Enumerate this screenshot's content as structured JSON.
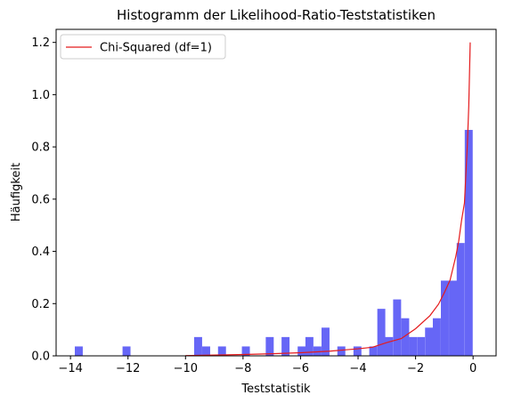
{
  "chart_data": {
    "type": "bar",
    "title": "Histogramm der Likelihood-Ratio-Teststatistiken",
    "xlabel": "Teststatistik",
    "ylabel": "Häufigkeit",
    "xlim": [
      -14.5,
      0.8
    ],
    "ylim": [
      0,
      1.25
    ],
    "xticks": [
      -14,
      -12,
      -10,
      -8,
      -6,
      -4,
      -2,
      0
    ],
    "yticks": [
      0.0,
      0.2,
      0.4,
      0.6,
      0.8,
      1.0,
      1.2
    ],
    "bin_width": 0.277,
    "bar_color": "#6666f6",
    "line_color": "#e41a1c",
    "histogram": {
      "bin_left": [
        -13.85,
        -12.19,
        -9.7,
        -9.42,
        -8.87,
        -8.04,
        -7.21,
        -6.66,
        -6.1,
        -5.83,
        -5.55,
        -5.27,
        -4.72,
        -4.16,
        -3.61,
        -3.33,
        -3.06,
        -2.78,
        -2.5,
        -2.23,
        -1.95,
        -1.67,
        -1.4,
        -1.12,
        -0.84,
        -0.57,
        -0.29
      ],
      "values": [
        0.036,
        0.036,
        0.072,
        0.036,
        0.036,
        0.036,
        0.072,
        0.072,
        0.036,
        0.072,
        0.036,
        0.108,
        0.036,
        0.036,
        0.036,
        0.18,
        0.072,
        0.216,
        0.144,
        0.072,
        0.072,
        0.108,
        0.144,
        0.288,
        0.288,
        0.432,
        0.865
      ]
    },
    "series": [
      {
        "name": "Chi-Squared (df=1)",
        "type": "line",
        "x": [
          -10.0,
          -9.0,
          -8.0,
          -7.0,
          -6.0,
          -5.0,
          -4.0,
          -3.5,
          -3.0,
          -2.5,
          -2.0,
          -1.5,
          -1.2,
          -1.0,
          -0.8,
          -0.6,
          -0.5,
          -0.4,
          -0.3,
          -0.25,
          -0.2,
          -0.15,
          -0.1
        ],
        "y": [
          0.001,
          0.003,
          0.005,
          0.008,
          0.012,
          0.018,
          0.027,
          0.033,
          0.051,
          0.066,
          0.104,
          0.154,
          0.198,
          0.242,
          0.29,
          0.381,
          0.439,
          0.519,
          0.585,
          0.696,
          0.805,
          0.957,
          1.2
        ]
      }
    ],
    "legend": {
      "position": "top-left",
      "entries": [
        "Chi-Squared (df=1)"
      ]
    }
  }
}
